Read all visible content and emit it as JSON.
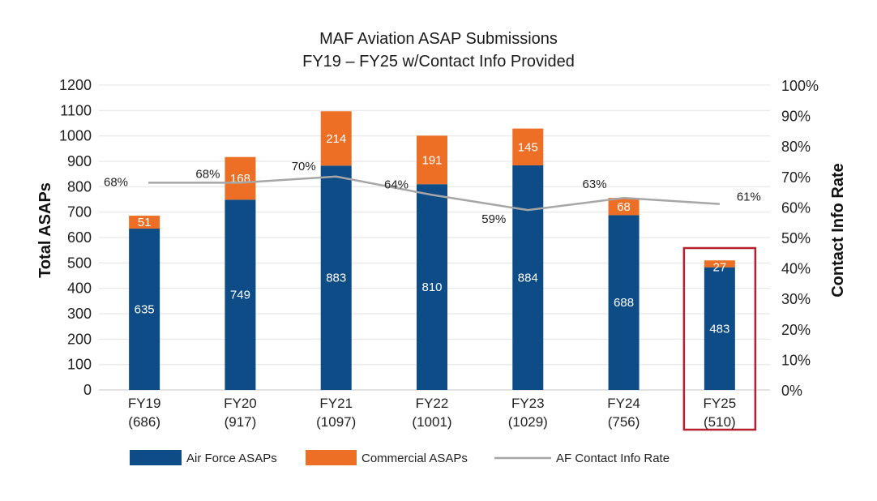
{
  "chart_data": {
    "type": "bar",
    "stacked": true,
    "title": "MAF Aviation ASAP Submissions",
    "subtitle": "FY19 – FY25 w/Contact Info Provided",
    "ylabel": "Total ASAPs",
    "y2label": "Contact Info Rate",
    "ylim": [
      0,
      1200
    ],
    "y2lim": [
      0,
      100
    ],
    "yticks": [
      "0",
      "100",
      "200",
      "300",
      "400",
      "500",
      "600",
      "700",
      "800",
      "900",
      "1000",
      "1100",
      "1200"
    ],
    "y2ticks": [
      "0%",
      "10%",
      "20%",
      "30%",
      "40%",
      "50%",
      "60%",
      "70%",
      "80%",
      "90%",
      "100%"
    ],
    "grid": true,
    "legend_position": "bottom",
    "categories": [
      "FY19",
      "FY20",
      "FY21",
      "FY22",
      "FY23",
      "FY24",
      "FY25"
    ],
    "category_totals": [
      "(686)",
      "(917)",
      "(1097)",
      "(1001)",
      "(1029)",
      "(756)",
      "(510)"
    ],
    "series": [
      {
        "name": "Air Force ASAPs",
        "type": "bar",
        "color": "#0d4c86",
        "values": [
          635,
          749,
          883,
          810,
          884,
          688,
          483
        ]
      },
      {
        "name": "Commercial ASAPs",
        "type": "bar",
        "color": "#ec6f25",
        "values": [
          51,
          168,
          214,
          191,
          145,
          68,
          27
        ]
      },
      {
        "name": "AF Contact Info Rate",
        "type": "line",
        "axis": "right",
        "color": "#a6a6a6",
        "values": [
          68,
          68,
          70,
          64,
          59,
          63,
          61
        ],
        "labels": [
          "68%",
          "68%",
          "70%",
          "64%",
          "59%",
          "63%",
          "61%"
        ]
      }
    ],
    "highlight": {
      "category": "FY25",
      "color": "#b5202e"
    }
  }
}
